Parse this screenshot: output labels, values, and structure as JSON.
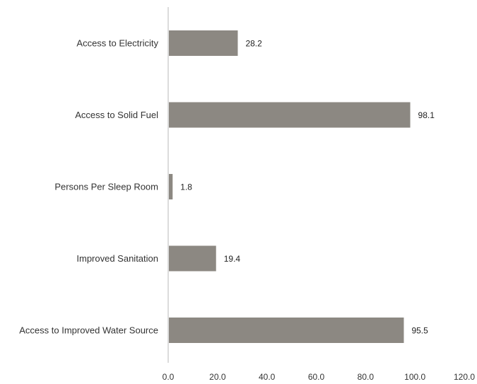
{
  "chart_data": {
    "type": "bar",
    "orientation": "horizontal",
    "categories": [
      "Access to Electricity",
      "Access to Solid Fuel",
      "Persons Per Sleep Room",
      "Improved Sanitation",
      "Access to Improved Water Source"
    ],
    "values": [
      28.2,
      98.1,
      1.8,
      19.4,
      95.5
    ],
    "value_labels": [
      "28.2",
      "98.1",
      "1.8",
      "19.4",
      "95.5"
    ],
    "xlim": [
      0,
      120
    ],
    "x_ticks": [
      "0.0",
      "20.0",
      "40.0",
      "60.0",
      "80.0",
      "100.0",
      "120.0"
    ],
    "grid": false,
    "legend": "none",
    "bar_color": "#8c8882",
    "axis_color": "#d0d0d0"
  }
}
